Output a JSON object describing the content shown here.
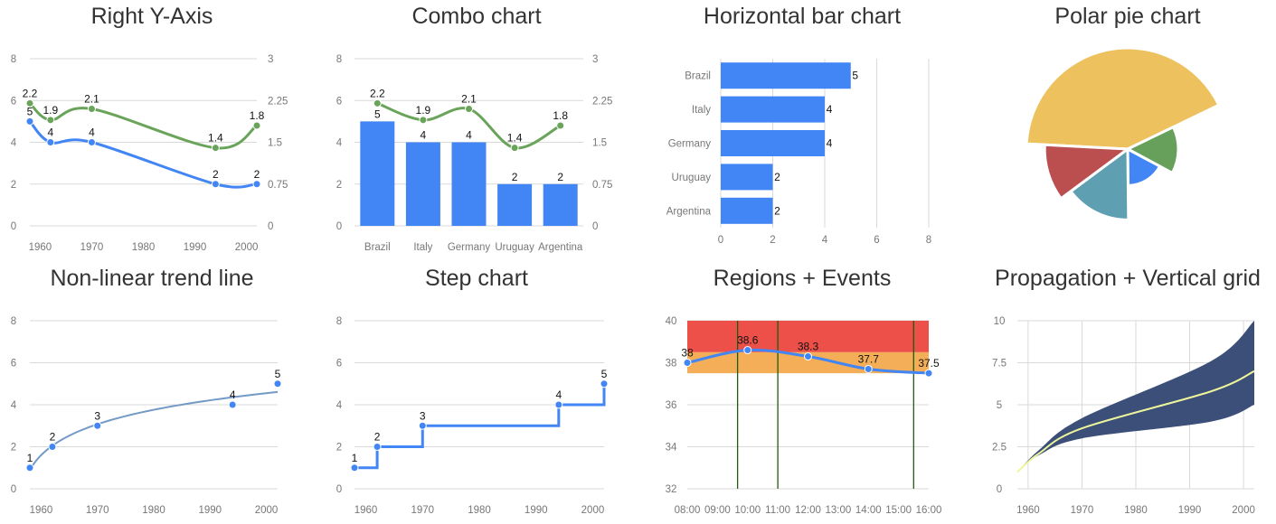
{
  "chart_data": [
    {
      "type": "line",
      "title": "Right Y-Axis",
      "x": [
        1958,
        1962,
        1970,
        1994,
        2002
      ],
      "xticks": [
        "1960",
        "1970",
        "1980",
        "1990",
        "2000"
      ],
      "xlim": [
        1958,
        2002
      ],
      "ylim": [
        0,
        8
      ],
      "ylim_right": [
        0,
        3
      ],
      "yticks": [
        "0",
        "2",
        "4",
        "6",
        "8"
      ],
      "yticks_right": [
        "0",
        "0.75",
        "1.5",
        "2.25",
        "3"
      ],
      "grid": true,
      "series": [
        {
          "axis": "left",
          "color": "#4285f4",
          "values": [
            5,
            4,
            4,
            2,
            2
          ]
        },
        {
          "axis": "right",
          "color": "#6aa35a",
          "values": [
            2.2,
            1.9,
            2.1,
            1.4,
            1.8
          ]
        }
      ]
    },
    {
      "type": "bar+line",
      "title": "Combo chart",
      "categories": [
        "Brazil",
        "Italy",
        "Germany",
        "Uruguay",
        "Argentina"
      ],
      "ylim": [
        0,
        8
      ],
      "ylim_right": [
        0,
        3
      ],
      "yticks": [
        "0",
        "2",
        "4",
        "6",
        "8"
      ],
      "yticks_right": [
        "0",
        "0.75",
        "1.5",
        "2.25",
        "3"
      ],
      "grid": true,
      "series": [
        {
          "type": "bar",
          "axis": "left",
          "color": "#4285f4",
          "values": [
            5,
            4,
            4,
            2,
            2
          ]
        },
        {
          "type": "line",
          "axis": "right",
          "color": "#6aa35a",
          "values": [
            2.2,
            1.9,
            2.1,
            1.4,
            1.8
          ]
        }
      ]
    },
    {
      "type": "bar",
      "orientation": "horizontal",
      "title": "Horizontal bar chart",
      "categories": [
        "Brazil",
        "Italy",
        "Germany",
        "Uruguay",
        "Argentina"
      ],
      "values": [
        5,
        4,
        4,
        2,
        2
      ],
      "color": "#4285f4",
      "xlim": [
        0,
        8
      ],
      "xticks": [
        "0",
        "2",
        "4",
        "6",
        "8"
      ],
      "grid": true
    },
    {
      "type": "pie",
      "variant": "polar",
      "title": "Polar pie chart",
      "slices": [
        {
          "share": 42,
          "radius": 10,
          "color": "#edc25e"
        },
        {
          "share": 15,
          "radius": 5,
          "color": "#67a05b"
        },
        {
          "share": 17,
          "radius": 3.6,
          "color": "#4285f4"
        },
        {
          "share": 15,
          "radius": 7,
          "color": "#5f9fb2"
        },
        {
          "share": 11,
          "radius": 8.2,
          "color": "#bb4e4e"
        }
      ]
    },
    {
      "type": "scatter",
      "title": "Non-linear trend line",
      "x": [
        1958,
        1962,
        1970,
        1994,
        2002
      ],
      "values": [
        1,
        2,
        3,
        4,
        5
      ],
      "trendline": "polynomial",
      "trend_color": "#7399c6",
      "color": "#4285f4",
      "xlim": [
        1958,
        2002
      ],
      "xticks": [
        "1960",
        "1970",
        "1980",
        "1990",
        "2000"
      ],
      "ylim": [
        0,
        8
      ],
      "yticks": [
        "0",
        "2",
        "4",
        "6",
        "8"
      ],
      "grid": true
    },
    {
      "type": "line",
      "variant": "step",
      "title": "Step chart",
      "x": [
        1958,
        1962,
        1970,
        1994,
        2002
      ],
      "values": [
        1,
        2,
        3,
        4,
        5
      ],
      "color": "#4285f4",
      "xlim": [
        1958,
        2002
      ],
      "xticks": [
        "1960",
        "1970",
        "1980",
        "1990",
        "2000"
      ],
      "ylim": [
        0,
        8
      ],
      "yticks": [
        "0",
        "2",
        "4",
        "6",
        "8"
      ],
      "grid": true
    },
    {
      "type": "line",
      "title": "Regions + Events",
      "x": [
        "08:00",
        "10:00",
        "12:00",
        "14:00",
        "16:00"
      ],
      "values": [
        38,
        38.6,
        38.3,
        37.7,
        37.5
      ],
      "color": "#4285f4",
      "xticks": [
        "08:00",
        "09:00",
        "10:00",
        "11:00",
        "12:00",
        "13:00",
        "14:00",
        "15:00",
        "16:00"
      ],
      "ylim": [
        32,
        40
      ],
      "yticks": [
        "32",
        "34",
        "36",
        "38",
        "40"
      ],
      "regions": [
        {
          "from": 38.5,
          "to": 40,
          "color": "#ec5049"
        },
        {
          "from": 37.5,
          "to": 38.5,
          "color": "#f3ae57"
        }
      ],
      "events": [
        "09:40",
        "11:00",
        "15:30"
      ],
      "event_color": "#1f5c0f",
      "grid": true
    },
    {
      "type": "area",
      "variant": "interval band",
      "title": "Propagation + Vertical grid",
      "x": [
        1958,
        1962,
        1970,
        1994,
        2002
      ],
      "mean": [
        1,
        2.1,
        3.6,
        5.8,
        7
      ],
      "upper": [
        1,
        2.3,
        4.2,
        7.6,
        10
      ],
      "lower": [
        1,
        2,
        3,
        4,
        5
      ],
      "band_color": "#3b4f79",
      "line_color": "#eef59a",
      "xlim": [
        1958,
        2002
      ],
      "xticks": [
        "1960",
        "1970",
        "1980",
        "1990",
        "2000"
      ],
      "ylim": [
        0,
        10
      ],
      "yticks": [
        "0",
        "2.5",
        "5",
        "7.5",
        "10"
      ],
      "grid": true,
      "vertical_grid": true
    }
  ]
}
